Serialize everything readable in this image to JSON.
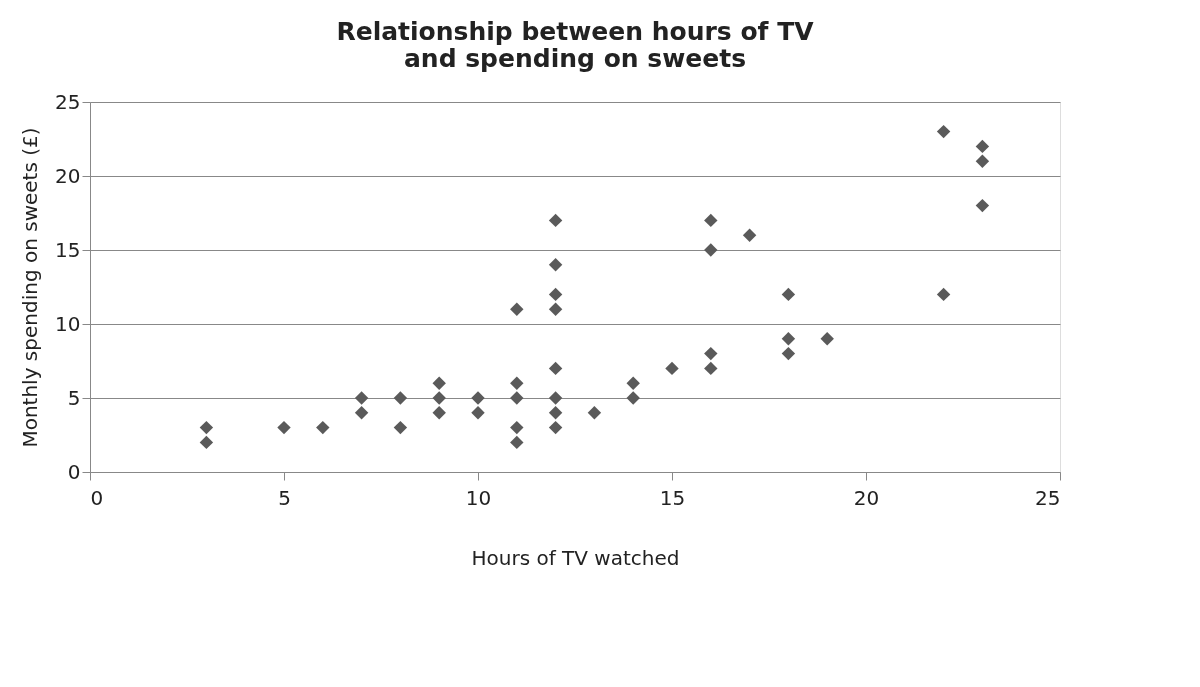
{
  "chart_data": {
    "type": "scatter",
    "title": [
      "Relationship between hours of TV",
      "and spending on sweets"
    ],
    "xlabel": "Hours of TV watched",
    "ylabel": "Monthly spending on sweets (£)",
    "x": [
      3,
      3,
      5,
      6,
      7,
      7,
      8,
      8,
      9,
      9,
      9,
      10,
      10,
      11,
      11,
      11,
      11,
      11,
      12,
      12,
      12,
      12,
      12,
      12,
      12,
      12,
      13,
      14,
      14,
      15,
      16,
      16,
      16,
      16,
      17,
      18,
      18,
      18,
      19,
      22,
      22,
      23,
      23,
      23
    ],
    "series": [
      {
        "color": "#5a5a5a",
        "values": [
          3,
          2,
          3,
          3,
          5,
          4,
          5,
          3,
          6,
          5,
          4,
          5,
          4,
          11,
          6,
          5,
          3,
          2,
          17,
          14,
          12,
          11,
          7,
          5,
          4,
          3,
          4,
          6,
          5,
          7,
          17,
          15,
          8,
          7,
          16,
          12,
          9,
          8,
          9,
          23,
          12,
          22,
          21,
          18
        ]
      }
    ],
    "xlim": [
      0,
      25
    ],
    "xticks": [
      0,
      5,
      10,
      15,
      20,
      25
    ],
    "ylim": [
      0,
      25
    ],
    "yticks": [
      0,
      5,
      10,
      15,
      20,
      25
    ],
    "grid": "y",
    "marker": "diamond",
    "legend": false
  }
}
